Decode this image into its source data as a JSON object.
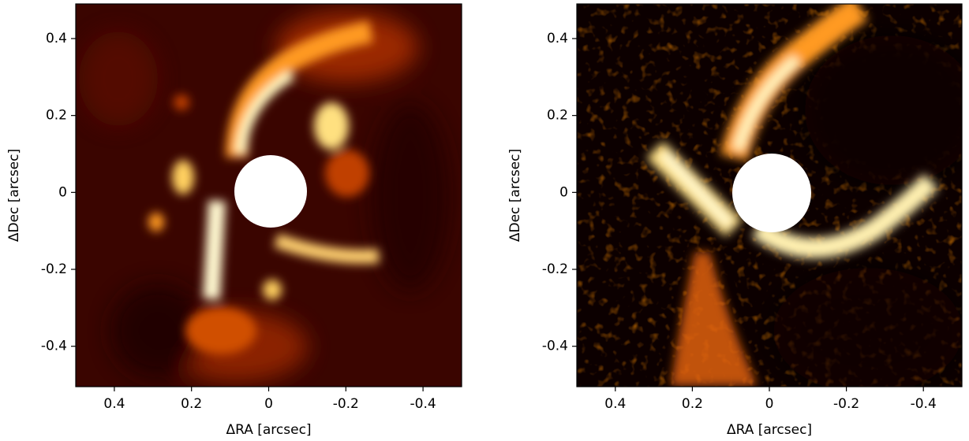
{
  "chart_data": [
    {
      "type": "image",
      "xlabel": "ΔRA [arcsec]",
      "ylabel": "ΔDec [arcsec]",
      "xlim": [
        0.5,
        -0.5
      ],
      "ylim": [
        -0.505,
        0.49
      ],
      "xticks": [
        0.4,
        0.2,
        0,
        -0.2,
        -0.4
      ],
      "yticks": [
        -0.4,
        -0.2,
        0,
        0.2,
        0.4
      ]
    },
    {
      "type": "image",
      "xlabel": "ΔRA [arcsec]",
      "ylabel": "ΔDec [arcsec]",
      "xlim": [
        0.5,
        -0.5
      ],
      "ylim": [
        -0.505,
        0.49
      ],
      "xticks": [
        0.4,
        0.2,
        0,
        -0.2,
        -0.4
      ],
      "yticks": [
        -0.4,
        -0.2,
        0,
        0.2,
        0.4
      ]
    }
  ]
}
